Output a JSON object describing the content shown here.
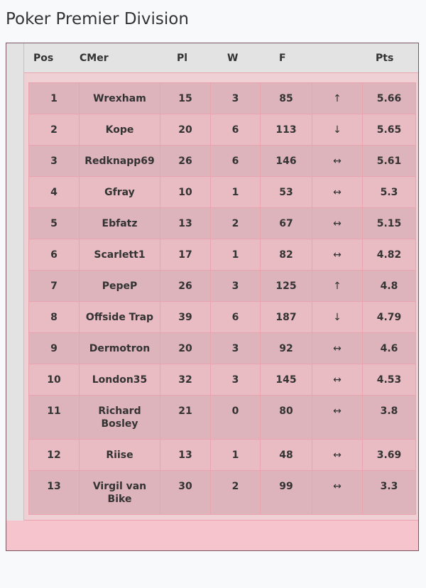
{
  "page": {
    "title": "Poker Premier Division"
  },
  "table": {
    "headers": {
      "pos": "Pos",
      "name": "CMer",
      "played": "Pl",
      "wins": "W",
      "for": "F",
      "trend": "",
      "points": "Pts"
    },
    "rows": [
      {
        "pos": "1",
        "name": "Wrexham",
        "played": "15",
        "wins": "3",
        "for": "85",
        "trend": "↑",
        "points": "5.66"
      },
      {
        "pos": "2",
        "name": "Kope",
        "played": "20",
        "wins": "6",
        "for": "113",
        "trend": "↓",
        "points": "5.65"
      },
      {
        "pos": "3",
        "name": "Redknapp69",
        "played": "26",
        "wins": "6",
        "for": "146",
        "trend": "↔",
        "points": "5.61"
      },
      {
        "pos": "4",
        "name": "Gfray",
        "played": "10",
        "wins": "1",
        "for": "53",
        "trend": "↔",
        "points": "5.3"
      },
      {
        "pos": "5",
        "name": "Ebfatz",
        "played": "13",
        "wins": "2",
        "for": "67",
        "trend": "↔",
        "points": "5.15"
      },
      {
        "pos": "6",
        "name": "Scarlett1",
        "played": "17",
        "wins": "1",
        "for": "82",
        "trend": "↔",
        "points": "4.82"
      },
      {
        "pos": "7",
        "name": "PepeP",
        "played": "26",
        "wins": "3",
        "for": "125",
        "trend": "↑",
        "points": "4.8"
      },
      {
        "pos": "8",
        "name": "Offside Trap",
        "played": "39",
        "wins": "6",
        "for": "187",
        "trend": "↓",
        "points": "4.79"
      },
      {
        "pos": "9",
        "name": "Dermotron",
        "played": "20",
        "wins": "3",
        "for": "92",
        "trend": "↔",
        "points": "4.6"
      },
      {
        "pos": "10",
        "name": "London35",
        "played": "32",
        "wins": "3",
        "for": "145",
        "trend": "↔",
        "points": "4.53"
      },
      {
        "pos": "11",
        "name": "Richard Bosley",
        "played": "21",
        "wins": "0",
        "for": "80",
        "trend": "↔",
        "points": "3.8"
      },
      {
        "pos": "12",
        "name": "Riise",
        "played": "13",
        "wins": "1",
        "for": "48",
        "trend": "↔",
        "points": "3.69"
      },
      {
        "pos": "13",
        "name": "Virgil van Bike",
        "played": "30",
        "wins": "2",
        "for": "99",
        "trend": "↔",
        "points": "3.3"
      }
    ]
  }
}
